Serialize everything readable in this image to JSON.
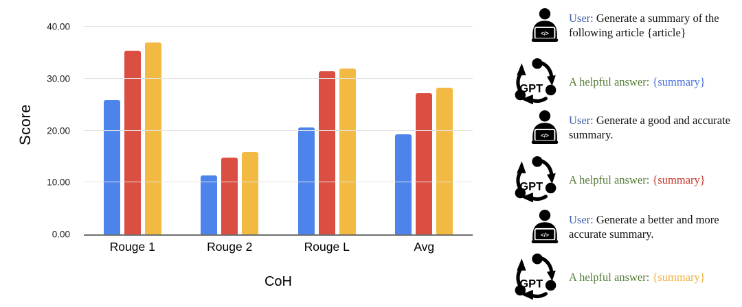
{
  "chart_data": {
    "type": "bar",
    "title": "",
    "xlabel": "CoH",
    "ylabel": "Score",
    "categories": [
      "Rouge 1",
      "Rouge 2",
      "Rouge L",
      "Avg"
    ],
    "series": [
      {
        "color": "#4C84EC",
        "values": [
          25.9,
          11.3,
          20.6,
          19.3
        ]
      },
      {
        "color": "#DA4F41",
        "values": [
          35.4,
          14.8,
          31.4,
          27.2
        ]
      },
      {
        "color": "#F2BA42",
        "values": [
          36.9,
          15.9,
          32.0,
          28.3
        ]
      }
    ],
    "ylim": [
      0,
      40
    ],
    "yticks": [
      "0.00",
      "10.00",
      "20.00",
      "30.00",
      "40.00"
    ],
    "grid": true,
    "legend": "none",
    "axis_color": "#6e6e6e",
    "gridline_color": "#e2e2e2"
  },
  "conversation": {
    "gpt_label": "GPT",
    "user_icon_glyph": "</>",
    "rows": [
      {
        "speaker": "user",
        "icon": "user-coder-icon",
        "prefix": "User:",
        "prefix_color": "#3E5EAC",
        "text": "Generate a summary of the following article {article}",
        "text_color": "#111111"
      },
      {
        "speaker": "gpt",
        "icon": "gpt-cycle-icon",
        "prefix": "A helpful answer:",
        "prefix_color": "#547C38",
        "text": "{summary}",
        "text_color": "#4A6FDB"
      },
      {
        "speaker": "user",
        "icon": "user-coder-icon",
        "prefix": "User:",
        "prefix_color": "#3E5EAC",
        "text": "Generate a good and accurate summary.",
        "text_color": "#111111"
      },
      {
        "speaker": "gpt",
        "icon": "gpt-cycle-icon",
        "prefix": "A helpful answer:",
        "prefix_color": "#547C38",
        "text": "{summary}",
        "text_color": "#C23A2C"
      },
      {
        "speaker": "user",
        "icon": "user-coder-icon",
        "prefix": "User:",
        "prefix_color": "#3E5EAC",
        "text": "Generate a better and more accurate summary.",
        "text_color": "#111111"
      },
      {
        "speaker": "gpt",
        "icon": "gpt-cycle-icon",
        "prefix": "A helpful answer:",
        "prefix_color": "#547C38",
        "text": "{summary}",
        "text_color": "#F0B13C"
      }
    ]
  }
}
